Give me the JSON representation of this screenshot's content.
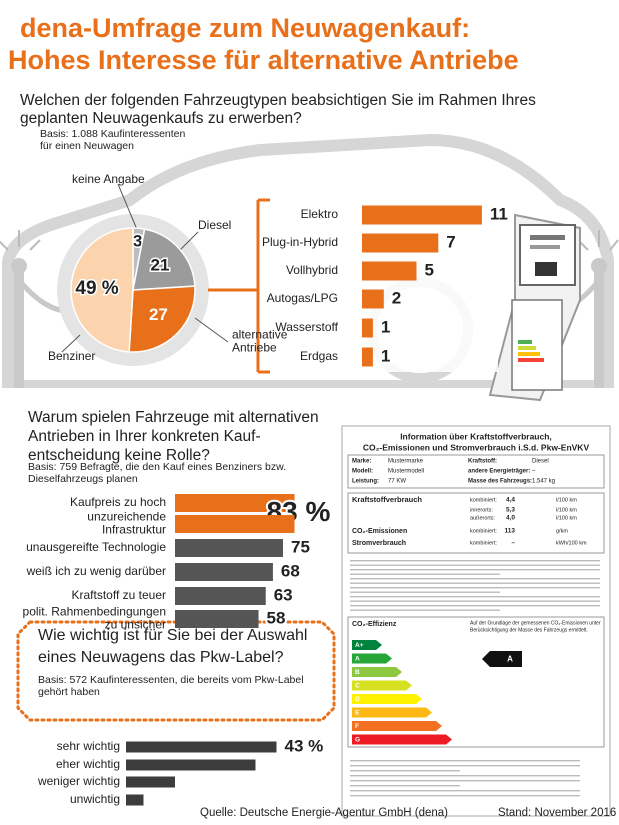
{
  "title": [
    "dena-Umfrage zum Neuwagenkauf:",
    "Hohes Interesse für alternative Antriebe"
  ],
  "chart_data": [
    {
      "type": "pie",
      "title": [
        "Welchen der folgenden Fahrzeugtypen beabsichtigen Sie im Rahmen Ihres",
        "geplanten Neuwagenkaufs zu erwerben?"
      ],
      "subtitle": [
        "Basis: 1.088 Kaufinteressenten",
        "für einen Neuwagen"
      ],
      "categories": [
        "keine Angabe",
        "Diesel",
        "alternative Antriebe",
        "Benziner"
      ],
      "values": [
        3,
        21,
        27,
        49
      ],
      "value_labels": [
        null,
        null,
        null,
        "49 %"
      ],
      "colors": [
        "#bdbdbd",
        "#9b9b9b",
        "#e8701a",
        "#fbd3ad"
      ]
    },
    {
      "type": "hbar",
      "categories": [
        "Elektro",
        "Plug-in-Hybrid",
        "Vollhybrid",
        "Autogas/LPG",
        "Wasserstoff",
        "Erdgas"
      ],
      "values": [
        11,
        7,
        5,
        2,
        1,
        1
      ],
      "colors": [
        "#e8701a",
        "#e8701a",
        "#e8701a",
        "#e8701a",
        "#e8701a",
        "#e8701a"
      ]
    },
    {
      "type": "hbar",
      "title": [
        "Warum spielen Fahrzeuge mit alternativen",
        "Antrieben in Ihrer konkreten Kauf-",
        "entscheidung keine Rolle?"
      ],
      "subtitle": [
        "Basis: 759 Befragte, die den Kauf eines Benziners bzw.",
        "Dieselfahrzeugs planen"
      ],
      "categories": [
        "Kaufpreis zu hoch",
        "unzureichende Infrastruktur",
        "unausgereifte Technologie",
        "weiß ich zu wenig darüber",
        "Kraftstoff zu teuer",
        "polit. Rahmenbedingungen zu unsicher"
      ],
      "values": [
        83,
        83,
        75,
        68,
        63,
        58
      ],
      "value_labels": [
        "83 %",
        null,
        "75",
        "68",
        "63",
        "58"
      ],
      "colors": [
        "#e8701a",
        "#e8701a",
        "#555555",
        "#555555",
        "#555555",
        "#555555"
      ]
    },
    {
      "type": "hbar",
      "title": [
        "Wie wichtig ist für Sie bei der Auswahl",
        "eines Neuwagens das Pkw-Label?"
      ],
      "subtitle": [
        "Basis: 572 Kaufinteressenten, die bereits vom Pkw-Label",
        "gehört haben"
      ],
      "categories": [
        "sehr wichtig",
        "eher wichtig",
        "weniger wichtig",
        "unwichtig"
      ],
      "values": [
        43,
        37,
        14,
        5
      ],
      "value_labels": [
        "43 %",
        null,
        null,
        null
      ],
      "colors": [
        "#3d3d3d",
        "#3d3d3d",
        "#3d3d3d",
        "#3d3d3d"
      ]
    }
  ],
  "label": {
    "title": [
      "Information über Kraftstoffverbrauch,",
      "CO₂-Emissionen und Stromverbrauch i.S.d. Pkw-EnVKV"
    ],
    "info": [
      {
        "k1": "Marke:",
        "v1": "Mustermarke",
        "k2": "Kraftstoff:",
        "v2": "Diesel"
      },
      {
        "k1": "Modell:",
        "v1": "Mustermodell",
        "k2": "andere Energieträger:",
        "v2": "–"
      },
      {
        "k1": "Leistung:",
        "v1": "77 KW",
        "k2": "Masse des Fahrzeugs:",
        "v2": "1.547 kg"
      }
    ],
    "consumption": [
      {
        "name": "Kraftstoffverbrauch",
        "mode": "kombiniert:",
        "value": "4,4",
        "unit": "l/100 km"
      },
      {
        "mode": "innerorts:",
        "value": "5,3",
        "unit": "l/100 km"
      },
      {
        "mode": "außerorts:",
        "value": "4,0",
        "unit": "l/100 km"
      },
      {
        "name": "CO₂-Emissionen",
        "mode": "kombiniert:",
        "value": "113",
        "unit": "g/km"
      },
      {
        "name": "Stromverbrauch",
        "mode": "kombiniert:",
        "value": "–",
        "unit": "kWh/100 km"
      }
    ],
    "efficiency_title": "CO₂-Effizienz",
    "efficiency_note": [
      "Auf der Grundlage der gemessenen CO₂-Emissionen unter",
      "Berücksichtigung der Masse des Fahrzeugs ermittelt."
    ],
    "classes": [
      "A+",
      "A",
      "B",
      "C",
      "D",
      "E",
      "F",
      "G"
    ],
    "rating": "A"
  },
  "source": "Quelle: Deutsche Energie-Agentur GmbH (dena)",
  "date": "Stand: November 2016"
}
